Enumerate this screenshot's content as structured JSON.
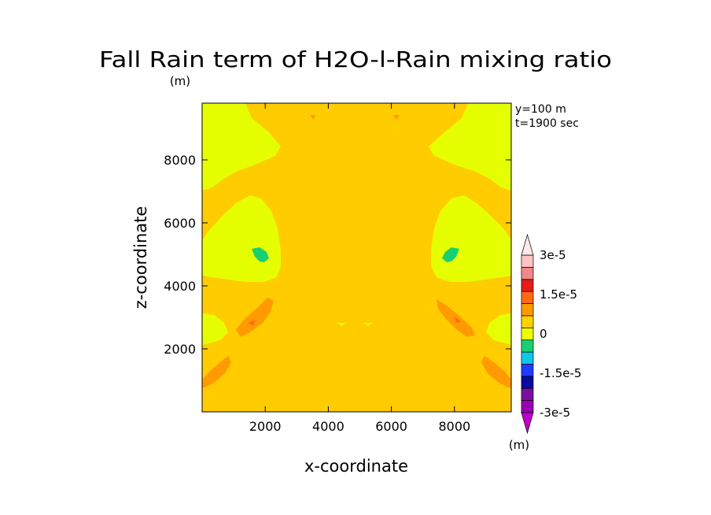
{
  "chart_data": {
    "type": "heatmap",
    "title": "Fall Rain term of H2O-l-Rain mixing ratio",
    "y_unit_label": "(m)",
    "xlabel": "x-coordinate",
    "ylabel": "z-coordinate",
    "xlim": [
      0,
      9800
    ],
    "ylim": [
      0,
      9800
    ],
    "x_ticks": [
      2000,
      4000,
      6000,
      8000
    ],
    "y_ticks": [
      2000,
      4000,
      6000,
      8000
    ],
    "x_tick_labels": [
      "2000",
      "4000",
      "6000",
      "8000"
    ],
    "y_tick_labels": [
      "2000",
      "4000",
      "6000",
      "8000"
    ],
    "annotations": [
      "y=100 m",
      "t=1900 sec"
    ],
    "colorbar": {
      "levels": [
        -3e-05,
        -2.5e-05,
        -2e-05,
        -1.5e-05,
        -1e-05,
        -5e-06,
        0,
        5e-06,
        1e-05,
        1.5e-05,
        2e-05,
        2.5e-05,
        3e-05
      ],
      "colors": [
        "#9a00b4",
        "#7b10a0",
        "#0a0aa0",
        "#1e3cff",
        "#10c8e6",
        "#18d070",
        "#f0ff00",
        "#ffd200",
        "#ff9a00",
        "#ff6a10",
        "#e81a1a",
        "#f08888",
        "#ffc4c4"
      ],
      "tick_labels": [
        "3e-5",
        "1.5e-5",
        "0",
        "-1.5e-5",
        "-3e-5"
      ],
      "tick_values": [
        3e-05,
        1.5e-05,
        0,
        -1.5e-05,
        -3e-05
      ],
      "unit": "(m)"
    },
    "field_description": "mostly 0 to 5e-6 (yellow-orange) across the domain; -5e-6 to 0 (yellow) near the upper left and right edges and in lobes around x=1500 and x=8300 between z=3000 and z=7000; small -1e-5 (green) spots near x=2000, z=5100 and x=7800, z=5100; 5e-6 to 1e-5 (orange) bands near x=2000, z=3200 and x=7800, z=3200 and near the lower edges"
  }
}
